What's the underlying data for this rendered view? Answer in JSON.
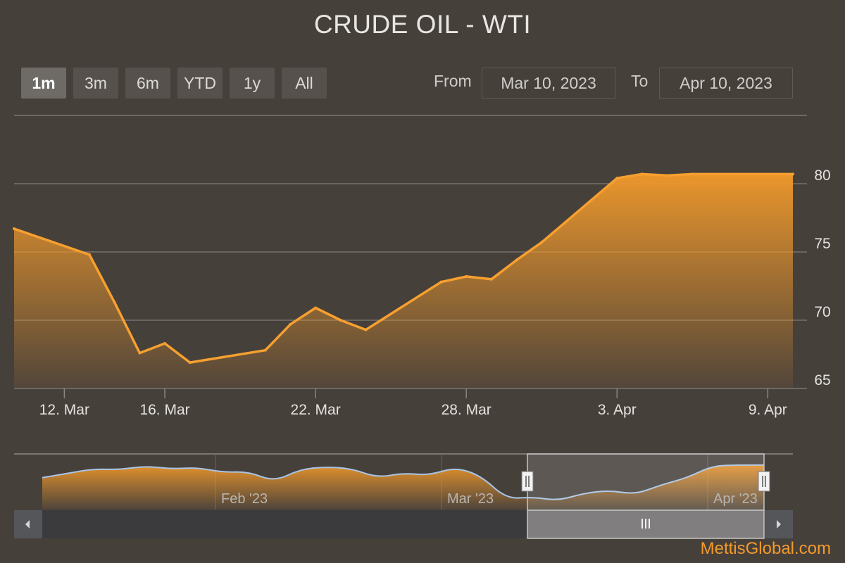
{
  "title": "CRUDE OIL - WTI",
  "range_selector": {
    "buttons": [
      "1m",
      "3m",
      "6m",
      "YTD",
      "1y",
      "All"
    ],
    "active": "1m",
    "from_label": "From",
    "from_value": "Mar 10, 2023",
    "to_label": "To",
    "to_value": "Apr 10, 2023"
  },
  "chart_data": {
    "type": "area",
    "title": "CRUDE OIL - WTI",
    "x": [
      "2023-03-10",
      "2023-03-13",
      "2023-03-14",
      "2023-03-15",
      "2023-03-16",
      "2023-03-17",
      "2023-03-20",
      "2023-03-21",
      "2023-03-22",
      "2023-03-23",
      "2023-03-24",
      "2023-03-27",
      "2023-03-28",
      "2023-03-29",
      "2023-03-30",
      "2023-03-31",
      "2023-04-03",
      "2023-04-04",
      "2023-04-05",
      "2023-04-06",
      "2023-04-10"
    ],
    "values": [
      76.7,
      74.8,
      71.3,
      67.6,
      68.3,
      66.9,
      67.8,
      69.7,
      70.9,
      70.0,
      69.3,
      72.8,
      73.2,
      73.0,
      74.4,
      75.7,
      80.4,
      80.7,
      80.6,
      80.7,
      80.7
    ],
    "x_ticks": [
      "12. Mar",
      "16. Mar",
      "22. Mar",
      "28. Mar",
      "3. Apr",
      "9. Apr"
    ],
    "y_ticks": [
      "65",
      "70",
      "75",
      "80"
    ],
    "ylim": [
      65,
      85
    ],
    "xlim": [
      "2023-03-10",
      "2023-04-10"
    ],
    "grid": true,
    "colors": {
      "line": "#f7a02f",
      "fill_top": "#f39a2b",
      "background": "#46403b"
    }
  },
  "navigator": {
    "labels": [
      "Feb '23",
      "Mar '23",
      "Apr '23"
    ],
    "series": [
      75.8,
      77.5,
      79.2,
      78.9,
      80.3,
      79.2,
      79.7,
      77.9,
      78.1,
      74.3,
      79.0,
      80.0,
      79.3,
      75.8,
      77.6,
      76.7,
      79.8,
      76.7,
      67.6,
      68.3,
      66.9,
      69.7,
      70.9,
      69.3,
      73.0,
      75.7,
      80.4,
      80.7,
      80.7
    ]
  },
  "brand": "MettisGlobal.com"
}
